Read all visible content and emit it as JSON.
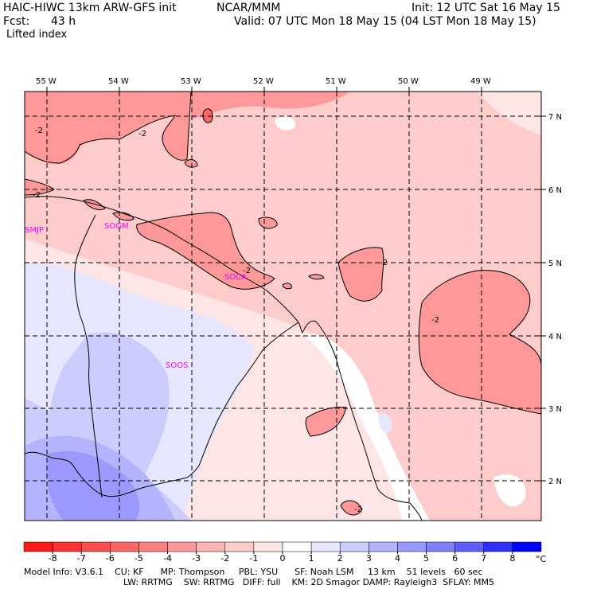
{
  "header": {
    "model_title": "HAIC-HIWC 13km ARW-GFS init",
    "org": "NCAR/MMM",
    "init": "Init: 12 UTC Sat 16 May 15",
    "fcst_label": "Fcst:",
    "fcst_value": "43 h",
    "valid": "Valid: 07 UTC Mon 18 May 15 (04 LST Mon 18 May 15)",
    "field": "Lifted index"
  },
  "map": {
    "lon_labels": [
      "55 W",
      "54 W",
      "53 W",
      "52 W",
      "51 W",
      "50 W",
      "49 W"
    ],
    "lat_labels": [
      "7 N",
      "6 N",
      "5 N",
      "4 N",
      "3 N",
      "2 N"
    ],
    "stations": [
      "SMJP",
      "SOGM",
      "SOCA",
      "SOOS"
    ],
    "contour_label": "-2"
  },
  "colorbar": {
    "levels": [
      "-8",
      "-7",
      "-6",
      "-5",
      "-4",
      "-3",
      "-2",
      "-1",
      "0",
      "1",
      "2",
      "3",
      "4",
      "5",
      "6",
      "7",
      "8"
    ],
    "unit": "°C",
    "colors": [
      "#ff1a1a",
      "#ff3333",
      "#ff4d4d",
      "#ff6666",
      "#ff8080",
      "#ff9999",
      "#ffb3b3",
      "#ffcccc",
      "#ffe6e6",
      "#ffffff",
      "#e6e6ff",
      "#ccccff",
      "#b3b3ff",
      "#9999ff",
      "#8080ff",
      "#5c5cff",
      "#2e2eff",
      "#0000ff"
    ]
  },
  "footer": {
    "line1": "Model Info: V3.6.1    CU: KF      MP: Thompson     PBL: YSU      SF: Noah LSM     13 km    51 levels   60 sec",
    "line2": "LW: RRTMG    SW: RRTMG   DIFF: full    KM: 2D Smagor DAMP: Rayleigh3  SFLAY: MM5"
  }
}
